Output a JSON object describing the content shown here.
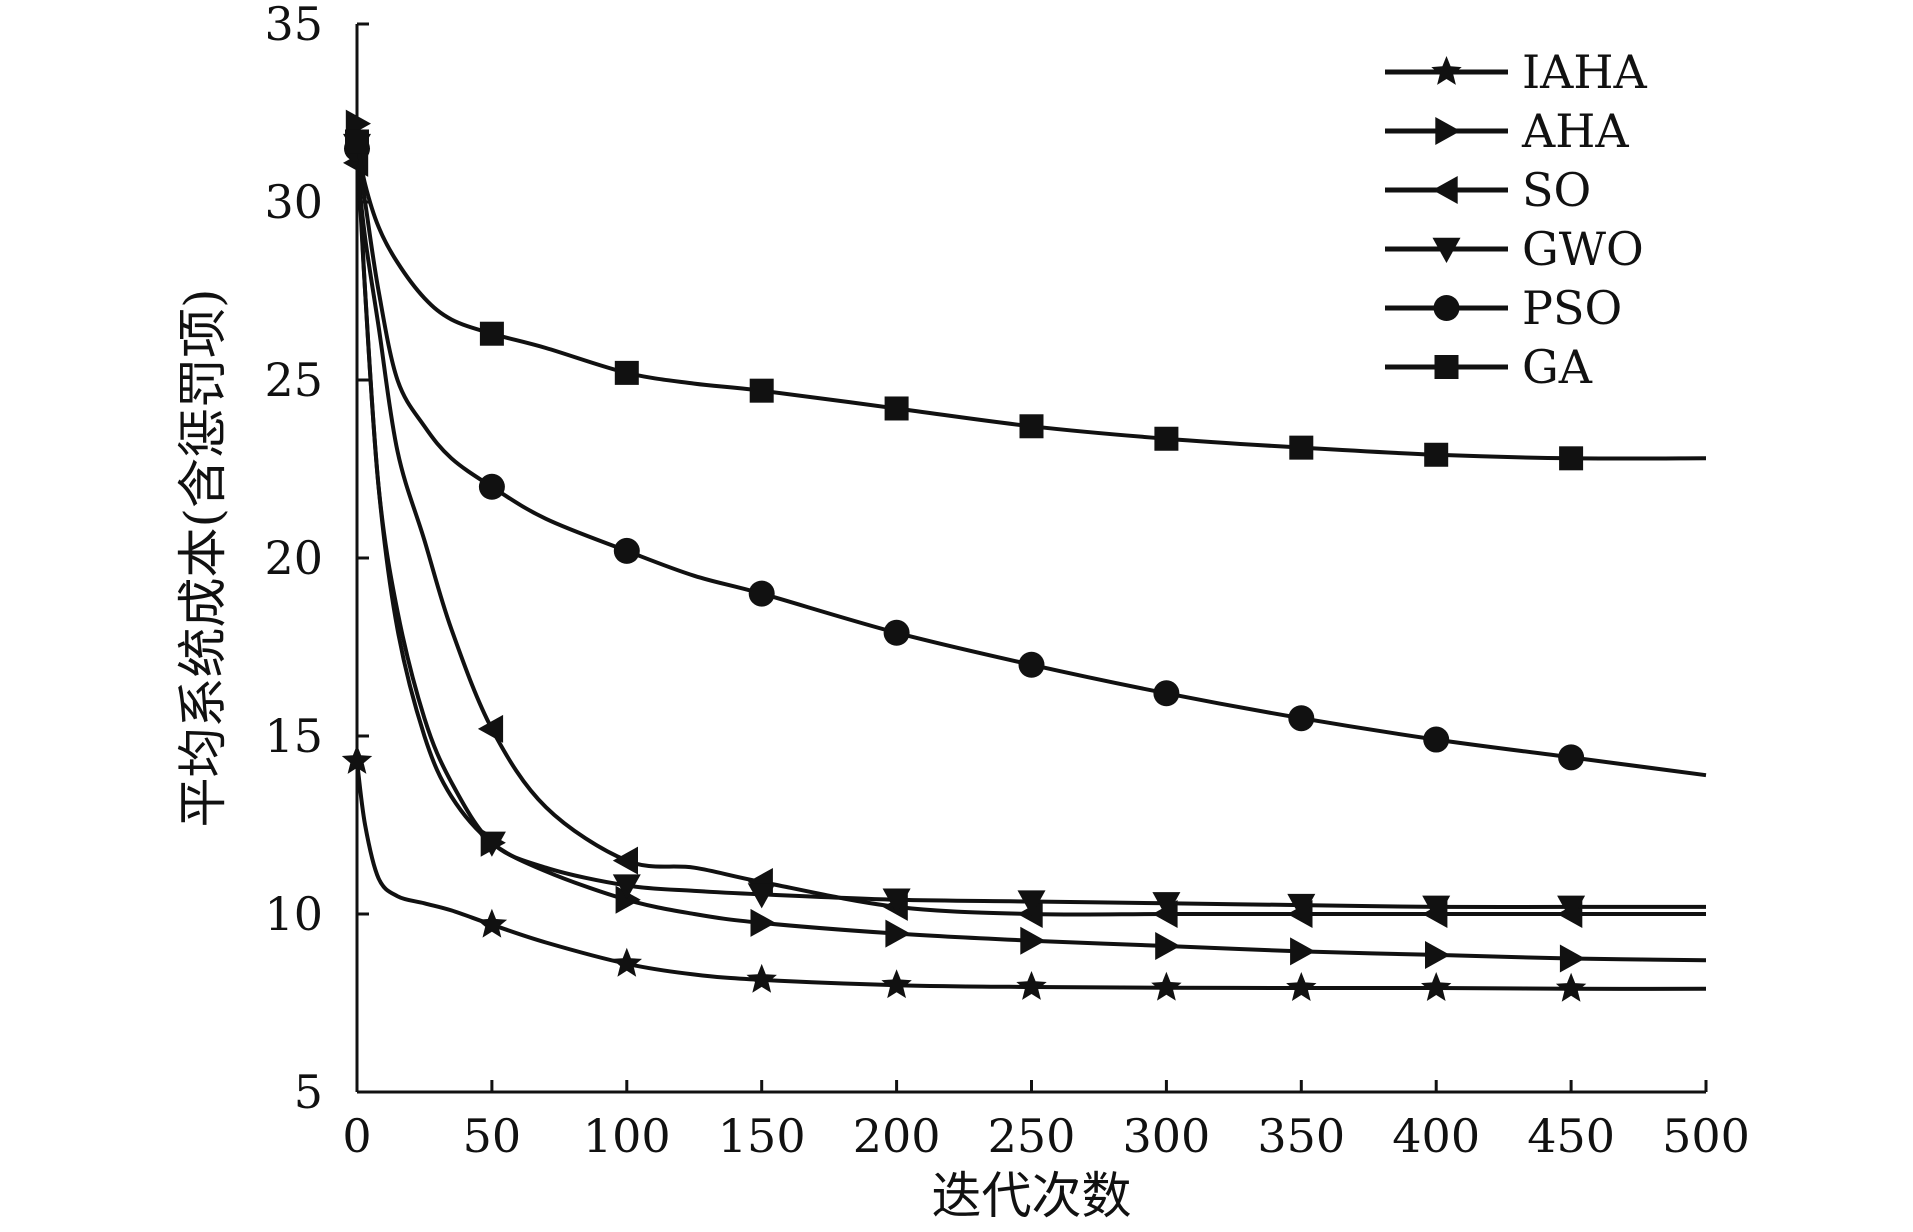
{
  "chart_data": {
    "type": "line",
    "title": "",
    "xlabel": "迭代次数",
    "ylabel": "平均系统成本(含惩罚项)",
    "xlim": [
      0,
      500
    ],
    "ylim": [
      5,
      35
    ],
    "xticks": [
      0,
      50,
      100,
      150,
      200,
      250,
      300,
      350,
      400,
      450,
      500
    ],
    "yticks": [
      5,
      10,
      15,
      20,
      25,
      30,
      35
    ],
    "grid": false,
    "legend_position": "top-right",
    "line_color": "#111111",
    "series": [
      {
        "name": "IAHA",
        "marker": "star",
        "x": [
          0,
          3,
          8,
          15,
          25,
          35,
          50,
          70,
          100,
          125,
          150,
          200,
          250,
          300,
          350,
          400,
          450,
          500
        ],
        "values": [
          14.3,
          12.5,
          11.0,
          10.5,
          10.3,
          10.1,
          9.7,
          9.2,
          8.6,
          8.3,
          8.15,
          8.0,
          7.95,
          7.93,
          7.92,
          7.92,
          7.9,
          7.9
        ]
      },
      {
        "name": "AHA",
        "marker": "triangle-right",
        "x": [
          0,
          3,
          8,
          15,
          25,
          35,
          50,
          70,
          100,
          125,
          150,
          200,
          250,
          300,
          350,
          400,
          450,
          500
        ],
        "values": [
          32.2,
          27.5,
          22.0,
          18.0,
          15.0,
          13.3,
          12.0,
          11.2,
          10.4,
          10.0,
          9.75,
          9.45,
          9.25,
          9.1,
          8.95,
          8.85,
          8.75,
          8.7
        ]
      },
      {
        "name": "SO",
        "marker": "triangle-left",
        "x": [
          0,
          3,
          8,
          15,
          25,
          35,
          50,
          70,
          100,
          125,
          150,
          200,
          250,
          300,
          350,
          400,
          450,
          500
        ],
        "values": [
          31.1,
          29.0,
          26.5,
          23.0,
          20.5,
          18.0,
          15.2,
          13.0,
          11.5,
          11.3,
          10.9,
          10.2,
          10.0,
          10.0,
          10.0,
          10.0,
          10.0,
          10.0
        ]
      },
      {
        "name": "GWO",
        "marker": "triangle-down",
        "x": [
          0,
          3,
          8,
          15,
          25,
          35,
          50,
          70,
          100,
          125,
          150,
          200,
          250,
          300,
          350,
          400,
          450,
          500
        ],
        "values": [
          31.6,
          27.5,
          22.0,
          18.5,
          15.5,
          13.7,
          12.0,
          11.3,
          10.8,
          10.65,
          10.55,
          10.4,
          10.35,
          10.3,
          10.25,
          10.2,
          10.2,
          10.2
        ]
      },
      {
        "name": "PSO",
        "marker": "circle",
        "x": [
          0,
          3,
          8,
          15,
          25,
          35,
          50,
          70,
          100,
          125,
          150,
          200,
          250,
          300,
          350,
          400,
          450,
          500
        ],
        "values": [
          31.5,
          30.0,
          27.5,
          25.0,
          23.7,
          22.8,
          22.0,
          21.1,
          20.2,
          19.5,
          19.0,
          17.9,
          17.0,
          16.2,
          15.5,
          14.9,
          14.4,
          13.9
        ]
      },
      {
        "name": "GA",
        "marker": "square",
        "x": [
          0,
          3,
          8,
          15,
          25,
          35,
          50,
          70,
          100,
          125,
          150,
          200,
          250,
          300,
          350,
          400,
          450,
          500
        ],
        "values": [
          31.7,
          30.5,
          29.3,
          28.3,
          27.3,
          26.7,
          26.3,
          25.9,
          25.2,
          24.9,
          24.7,
          24.2,
          23.7,
          23.35,
          23.1,
          22.9,
          22.8,
          22.8
        ]
      }
    ]
  }
}
